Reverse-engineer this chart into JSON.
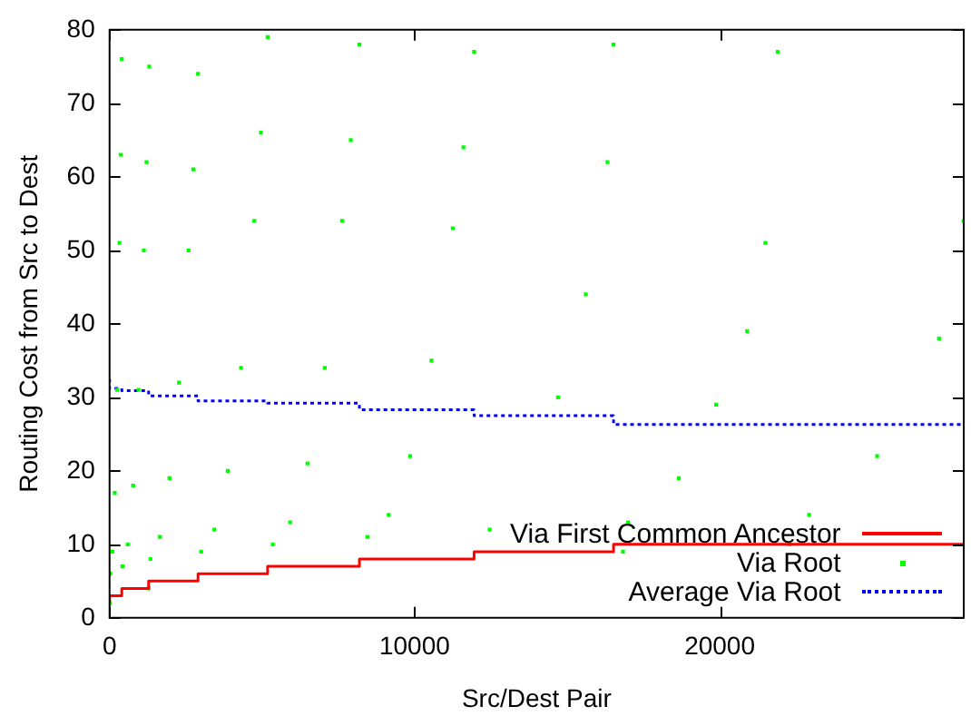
{
  "chart_data": {
    "type": "line",
    "xlabel": "Src/Dest Pair",
    "ylabel": "Routing Cost from Src to Dest",
    "xlim": [
      0,
      28000
    ],
    "xticks": [
      0,
      10000,
      20000
    ],
    "ylim": [
      0,
      80
    ],
    "yticks": [
      0,
      10,
      20,
      30,
      40,
      50,
      60,
      70,
      80
    ],
    "grid": false,
    "legend": "bottom right",
    "series": [
      {
        "name": "Via First Common Ancestor",
        "type": "step",
        "color": "#ff0000",
        "marker": "none",
        "line_style": "solid",
        "x": [
          0,
          400,
          1280,
          2900,
          5180,
          8190,
          11950,
          16520,
          21900,
          28000
        ],
        "values": [
          2,
          3,
          4,
          5,
          6,
          7,
          8,
          9,
          10,
          10
        ]
      },
      {
        "name": "Via Root",
        "type": "scatter",
        "color": "#00ff00",
        "marker": "square",
        "x": [
          0,
          20,
          96,
          172,
          248,
          324,
          362,
          400,
          420,
          596,
          772,
          948,
          1124,
          1212,
          1300,
          1280,
          1340,
          1652,
          1964,
          2276,
          2588,
          2744,
          2900,
          3000,
          3436,
          3872,
          4308,
          4744,
          4962,
          5180,
          5350,
          5918,
          6486,
          7054,
          7622,
          7906,
          8190,
          8450,
          9150,
          9850,
          10550,
          11250,
          11600,
          11950,
          12460,
          14700,
          15610,
          16320,
          16520,
          16830,
          17000,
          18660,
          19880,
          20900,
          21500,
          21900,
          22300,
          22930,
          25160,
          27190,
          28000
        ],
        "values": [
          2,
          6,
          9,
          17,
          31,
          51,
          63,
          76,
          7,
          10,
          18,
          31,
          50,
          62,
          75,
          4,
          8,
          11,
          19,
          32,
          50,
          61,
          74,
          9,
          12,
          20,
          34,
          54,
          66,
          79,
          10,
          13,
          21,
          34,
          54,
          65,
          78,
          11,
          14,
          22,
          35,
          53,
          64,
          77,
          12,
          30,
          44,
          62,
          78,
          9,
          13,
          19,
          29,
          39,
          51,
          77,
          10,
          14,
          22,
          38,
          54
        ]
      },
      {
        "name": "Average Via Root",
        "type": "step",
        "color": "#0000ff",
        "marker": "none",
        "line_style": "dotted",
        "x": [
          0,
          400,
          1280,
          2900,
          5180,
          8190,
          11950,
          16520,
          21900,
          28000
        ],
        "values": [
          32.5,
          31.2,
          30.9,
          30.2,
          29.5,
          29.2,
          28.3,
          27.5,
          26.3,
          26.3
        ]
      }
    ]
  }
}
